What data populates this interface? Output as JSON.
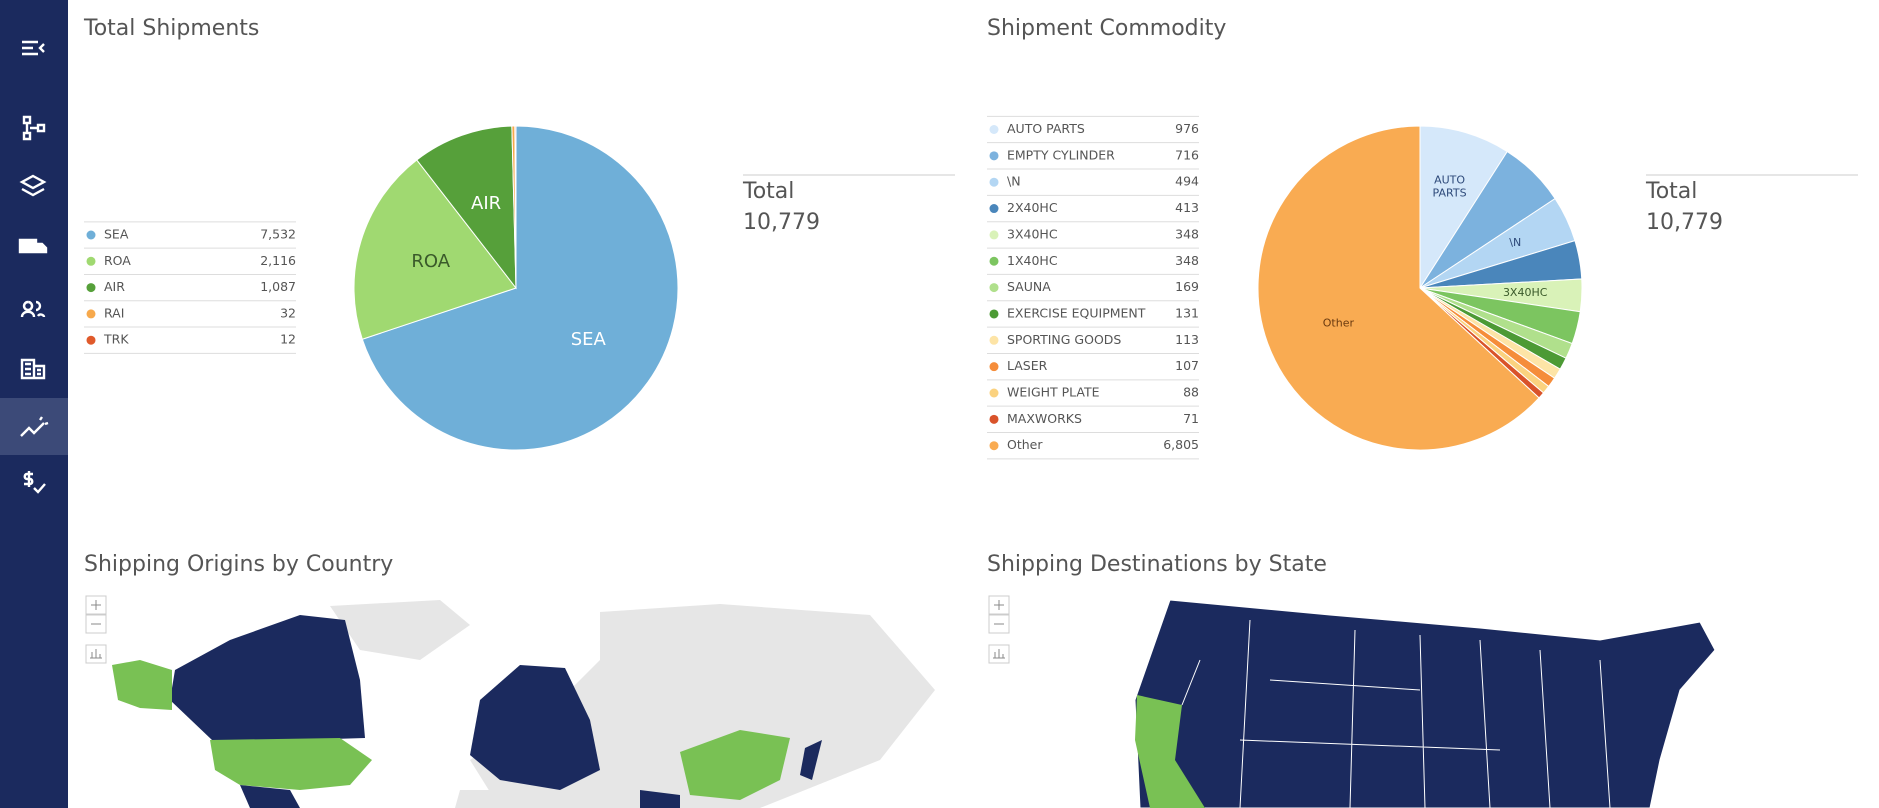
{
  "chart_data": [
    {
      "type": "pie",
      "title": "Total Shipments",
      "categories": [
        "SEA",
        "ROA",
        "AIR",
        "RAI",
        "TRK"
      ],
      "values": [
        7532,
        2116,
        1087,
        32,
        12
      ],
      "value_labels": [
        "7,532",
        "2,116",
        "1,087",
        "32",
        "12"
      ],
      "colors": [
        "#6fafd8",
        "#a0d971",
        "#56a03a",
        "#f7a94c",
        "#e05a2b"
      ],
      "total_label": "Total",
      "total": {
        "value": 10779,
        "label": "10,779"
      }
    },
    {
      "type": "pie",
      "title": "Shipment Commodity",
      "categories": [
        "AUTO PARTS",
        "EMPTY CYLINDER",
        "\\N",
        "2X40HC",
        "3X40HC",
        "1X40HC",
        "SAUNA",
        "EXERCISE EQUIPMENT",
        "SPORTING GOODS",
        "LASER",
        "WEIGHT PLATE",
        "MAXWORKS",
        "Other"
      ],
      "values": [
        976,
        716,
        494,
        413,
        348,
        348,
        169,
        131,
        113,
        107,
        88,
        71,
        6805
      ],
      "value_labels": [
        "976",
        "716",
        "494",
        "413",
        "348",
        "348",
        "169",
        "131",
        "113",
        "107",
        "88",
        "71",
        "6,805"
      ],
      "colors": [
        "#d5e8fa",
        "#7cb2de",
        "#b3d6f3",
        "#4a86bb",
        "#d9f2b8",
        "#7cc560",
        "#b0e08c",
        "#4c9a35",
        "#fde4a6",
        "#f58d3a",
        "#fbd27f",
        "#d9532a",
        "#f9ab52"
      ],
      "total_label": "Total",
      "total": {
        "value": 10779,
        "label": "10,779"
      }
    }
  ],
  "maps": [
    {
      "title": "Shipping Origins by Country"
    },
    {
      "title": "Shipping Destinations by State"
    }
  ]
}
